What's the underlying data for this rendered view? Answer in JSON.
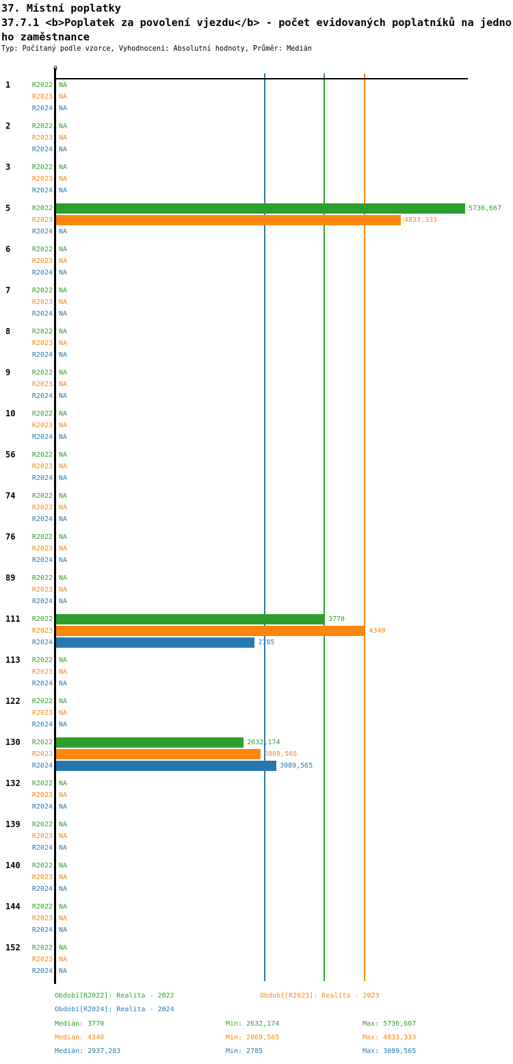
{
  "header": {
    "title": "37. Místní poplatky",
    "subtitle_line1": "37.7.1 <b>Poplatek za povolení vjezdu</b> - počet evidovaných poplatníků na jedno",
    "subtitle_line2": "ho zaměstnance",
    "meta": "Typ: Počítaný podle vzorce, Vyhodnocení: Absolutní hodnoty, Průměr: Medián"
  },
  "colors": {
    "r2022_green": "#2e9e2e",
    "r2023_orange": "#fc860e",
    "r2024_blue": "#2878b0",
    "axis_black": "#000000"
  },
  "chart_data": {
    "type": "bar",
    "orientation": "horizontal",
    "axis": {
      "origin_label": "0",
      "xmax": 5775
    },
    "na_label": "NA",
    "legend_position": "bottom",
    "series": [
      {
        "name": "R2022",
        "color": "#2e9e2e",
        "legend": "Období[R2022]: Realita - 2022",
        "median": 3770,
        "median_display": "Medián: 3770",
        "min_display": "Min: 2632,174",
        "max_display": "Max: 5736,667"
      },
      {
        "name": "R2023",
        "color": "#fc860e",
        "legend": "Období[R2023]: Realita - 2023",
        "median": 4340,
        "median_display": "Medián: 4340",
        "min_display": "Min: 2869,565",
        "max_display": "Max: 4833,333"
      },
      {
        "name": "R2024",
        "color": "#2878b0",
        "legend": "Období[R2024]: Realita - 2024",
        "median": 2937.283,
        "median_display": "Medián: 2937,283",
        "min_display": "Min: 2785",
        "max_display": "Max: 3089,565"
      }
    ],
    "groups": [
      {
        "category": "1",
        "bars": [
          {
            "value": null,
            "display": "NA"
          },
          {
            "value": null,
            "display": "NA"
          },
          {
            "value": null,
            "display": "NA"
          }
        ]
      },
      {
        "category": "2",
        "bars": [
          {
            "value": null,
            "display": "NA"
          },
          {
            "value": null,
            "display": "NA"
          },
          {
            "value": null,
            "display": "NA"
          }
        ]
      },
      {
        "category": "3",
        "bars": [
          {
            "value": null,
            "display": "NA"
          },
          {
            "value": null,
            "display": "NA"
          },
          {
            "value": null,
            "display": "NA"
          }
        ]
      },
      {
        "category": "5",
        "bars": [
          {
            "value": 5736.667,
            "display": "5736,667"
          },
          {
            "value": 4833.333,
            "display": "4833,333"
          },
          {
            "value": null,
            "display": "NA"
          }
        ]
      },
      {
        "category": "6",
        "bars": [
          {
            "value": null,
            "display": "NA"
          },
          {
            "value": null,
            "display": "NA"
          },
          {
            "value": null,
            "display": "NA"
          }
        ]
      },
      {
        "category": "7",
        "bars": [
          {
            "value": null,
            "display": "NA"
          },
          {
            "value": null,
            "display": "NA"
          },
          {
            "value": null,
            "display": "NA"
          }
        ]
      },
      {
        "category": "8",
        "bars": [
          {
            "value": null,
            "display": "NA"
          },
          {
            "value": null,
            "display": "NA"
          },
          {
            "value": null,
            "display": "NA"
          }
        ]
      },
      {
        "category": "9",
        "bars": [
          {
            "value": null,
            "display": "NA"
          },
          {
            "value": null,
            "display": "NA"
          },
          {
            "value": null,
            "display": "NA"
          }
        ]
      },
      {
        "category": "10",
        "bars": [
          {
            "value": null,
            "display": "NA"
          },
          {
            "value": null,
            "display": "NA"
          },
          {
            "value": null,
            "display": "NA"
          }
        ]
      },
      {
        "category": "56",
        "bars": [
          {
            "value": null,
            "display": "NA"
          },
          {
            "value": null,
            "display": "NA"
          },
          {
            "value": null,
            "display": "NA"
          }
        ]
      },
      {
        "category": "74",
        "bars": [
          {
            "value": null,
            "display": "NA"
          },
          {
            "value": null,
            "display": "NA"
          },
          {
            "value": null,
            "display": "NA"
          }
        ]
      },
      {
        "category": "76",
        "bars": [
          {
            "value": null,
            "display": "NA"
          },
          {
            "value": null,
            "display": "NA"
          },
          {
            "value": null,
            "display": "NA"
          }
        ]
      },
      {
        "category": "89",
        "bars": [
          {
            "value": null,
            "display": "NA"
          },
          {
            "value": null,
            "display": "NA"
          },
          {
            "value": null,
            "display": "NA"
          }
        ]
      },
      {
        "category": "111",
        "bars": [
          {
            "value": 3770,
            "display": "3770"
          },
          {
            "value": 4340,
            "display": "4340"
          },
          {
            "value": 2785,
            "display": "2785"
          }
        ]
      },
      {
        "category": "113",
        "bars": [
          {
            "value": null,
            "display": "NA"
          },
          {
            "value": null,
            "display": "NA"
          },
          {
            "value": null,
            "display": "NA"
          }
        ]
      },
      {
        "category": "122",
        "bars": [
          {
            "value": null,
            "display": "NA"
          },
          {
            "value": null,
            "display": "NA"
          },
          {
            "value": null,
            "display": "NA"
          }
        ]
      },
      {
        "category": "130",
        "bars": [
          {
            "value": 2632.174,
            "display": "2632,174"
          },
          {
            "value": 2869.565,
            "display": "2869,565"
          },
          {
            "value": 3089.565,
            "display": "3089,565"
          }
        ]
      },
      {
        "category": "132",
        "bars": [
          {
            "value": null,
            "display": "NA"
          },
          {
            "value": null,
            "display": "NA"
          },
          {
            "value": null,
            "display": "NA"
          }
        ]
      },
      {
        "category": "139",
        "bars": [
          {
            "value": null,
            "display": "NA"
          },
          {
            "value": null,
            "display": "NA"
          },
          {
            "value": null,
            "display": "NA"
          }
        ]
      },
      {
        "category": "140",
        "bars": [
          {
            "value": null,
            "display": "NA"
          },
          {
            "value": null,
            "display": "NA"
          },
          {
            "value": null,
            "display": "NA"
          }
        ]
      },
      {
        "category": "144",
        "bars": [
          {
            "value": null,
            "display": "NA"
          },
          {
            "value": null,
            "display": "NA"
          },
          {
            "value": null,
            "display": "NA"
          }
        ]
      },
      {
        "category": "152",
        "bars": [
          {
            "value": null,
            "display": "NA"
          },
          {
            "value": null,
            "display": "NA"
          },
          {
            "value": null,
            "display": "NA"
          }
        ]
      }
    ]
  }
}
